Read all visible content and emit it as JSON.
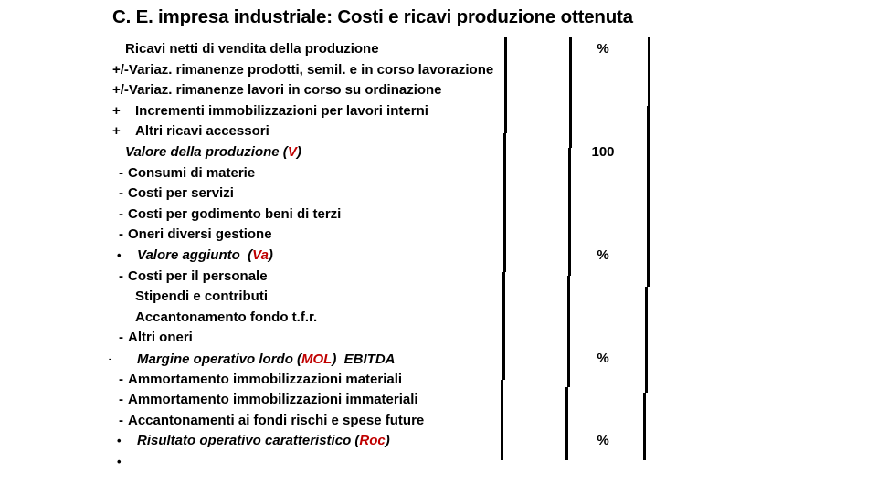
{
  "title": "C. E. impresa industriale: Costi e ricavi produzione ottenuta",
  "colors": {
    "accent_red": "#c00000",
    "text": "#000000",
    "background": "#ffffff"
  },
  "table": {
    "value_column_header": "%",
    "rows": [
      {
        "type": "t-plain",
        "italic": false,
        "bullet": "",
        "pre": "Ricavi netti di vendita della produzione",
        "red": "",
        "post": "",
        "value": "%"
      },
      {
        "type": "t-pm",
        "italic": false,
        "bullet": "",
        "pre": "+/-Variaz. rimanenze prodotti, semil. e in corso lavorazione",
        "red": "",
        "post": "",
        "value": ""
      },
      {
        "type": "t-pm",
        "italic": false,
        "bullet": "",
        "pre": "+/-Variaz. rimanenze lavori in corso su ordinazione",
        "red": "",
        "post": "",
        "value": ""
      },
      {
        "type": "t-plus",
        "italic": false,
        "bullet": "+",
        "pre": "Incrementi immobilizzazioni per lavori interni",
        "red": "",
        "post": "",
        "value": ""
      },
      {
        "type": "t-plus",
        "italic": false,
        "bullet": "+",
        "pre": "Altri ricavi accessori",
        "red": "",
        "post": "",
        "value": ""
      },
      {
        "type": "t-plain",
        "italic": true,
        "bullet": "",
        "pre": "Valore della produzione (",
        "red": "V",
        "post": ")",
        "value": "100"
      },
      {
        "type": "t-minus",
        "italic": false,
        "bullet": "-",
        "pre": "Consumi di materie",
        "red": "",
        "post": "",
        "value": ""
      },
      {
        "type": "t-minus",
        "italic": false,
        "bullet": "-",
        "pre": "Costi per servizi",
        "red": "",
        "post": "",
        "value": ""
      },
      {
        "type": "t-minus",
        "italic": false,
        "bullet": "-",
        "pre": "Costi per godimento beni di terzi",
        "red": "",
        "post": "",
        "value": ""
      },
      {
        "type": "t-minus",
        "italic": false,
        "bullet": "-",
        "pre": "Oneri diversi gestione",
        "red": "",
        "post": "",
        "value": ""
      },
      {
        "type": "t-bullet",
        "italic": true,
        "bullet": "•",
        "pre": "Valore aggiunto  (",
        "red": "Va",
        "post": ")",
        "value": "%"
      },
      {
        "type": "t-minus",
        "italic": false,
        "bullet": "-",
        "pre": "Costi per il personale",
        "red": "",
        "post": "",
        "value": ""
      },
      {
        "type": "t-sub",
        "italic": false,
        "bullet": "",
        "pre": "Stipendi e contributi",
        "red": "",
        "post": "",
        "value": ""
      },
      {
        "type": "t-sub",
        "italic": false,
        "bullet": "",
        "pre": "Accantonamento fondo t.f.r.",
        "red": "",
        "post": "",
        "value": ""
      },
      {
        "type": "t-minus",
        "italic": false,
        "bullet": "-",
        "pre": "Altri oneri",
        "red": "",
        "post": "",
        "value": ""
      },
      {
        "type": "t-tiny",
        "italic": true,
        "bullet": "-",
        "pre": "Margine operativo lordo (",
        "red": "MOL",
        "post": ")  EBITDA",
        "value": "%"
      },
      {
        "type": "t-minus",
        "italic": false,
        "bullet": "-",
        "pre": "Ammortamento immobilizzazioni materiali",
        "red": "",
        "post": "",
        "value": ""
      },
      {
        "type": "t-minus",
        "italic": false,
        "bullet": "-",
        "pre": "Ammortamento immobilizzazioni immateriali",
        "red": "",
        "post": "",
        "value": ""
      },
      {
        "type": "t-minus",
        "italic": false,
        "bullet": "-",
        "pre": "Accantonamenti ai fondi rischi e spese future",
        "red": "",
        "post": "",
        "value": ""
      },
      {
        "type": "t-bullet",
        "italic": true,
        "bullet": "•",
        "pre": "Risultato operativo caratteristico (",
        "red": "Roc",
        "post": ")",
        "value": "%"
      },
      {
        "type": "t-bullet",
        "italic": false,
        "bullet": "•",
        "pre": "",
        "red": "",
        "post": "",
        "value": ""
      }
    ]
  }
}
